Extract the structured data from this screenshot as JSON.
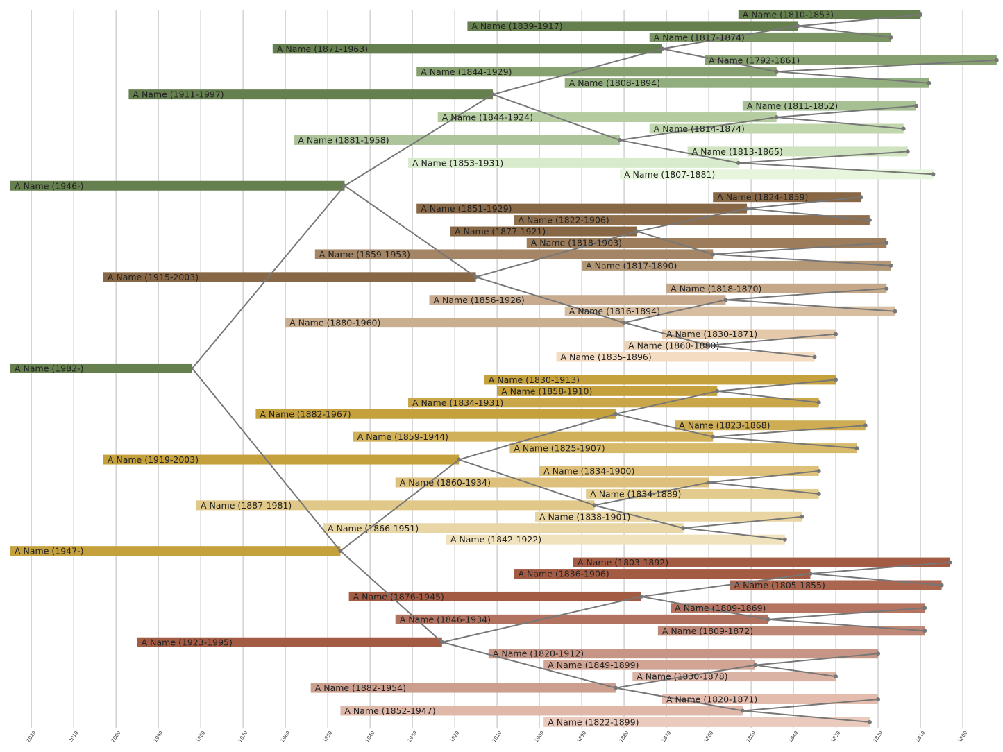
{
  "chart_data": {
    "type": "timeline",
    "xlim": [
      2027.4,
      1790.5
    ],
    "xticks": [
      2020,
      2010,
      2000,
      1990,
      1980,
      1970,
      1960,
      1950,
      1940,
      1930,
      1920,
      1910,
      1900,
      1890,
      1880,
      1870,
      1860,
      1850,
      1840,
      1830,
      1820,
      1810,
      1800
    ],
    "grid": true,
    "people": [
      {
        "label": "A Name (1810-1853)",
        "born": 1810,
        "died": 1853,
        "color": "#667f4f"
      },
      {
        "label": "A Name (1839-1917)",
        "born": 1839,
        "died": 1917,
        "color": "#667f4f"
      },
      {
        "label": "A Name (1817-1874)",
        "born": 1817,
        "died": 1874,
        "color": "#7a9463"
      },
      {
        "label": "A Name (1871-1963)",
        "born": 1871,
        "died": 1963,
        "color": "#667f4f"
      },
      {
        "label": "A Name (1792-1861)",
        "born": 1792,
        "died": 1861,
        "color": "#86a06f"
      },
      {
        "label": "A Name (1844-1929)",
        "born": 1844,
        "died": 1929,
        "color": "#86a06f"
      },
      {
        "label": "A Name (1808-1894)",
        "born": 1808,
        "died": 1894,
        "color": "#93ae7e"
      },
      {
        "label": "A Name (1911-1997)",
        "born": 1911,
        "died": 1997,
        "color": "#667f4f"
      },
      {
        "label": "A Name (1811-1852)",
        "born": 1811,
        "died": 1852,
        "color": "#a6c093"
      },
      {
        "label": "A Name (1844-1924)",
        "born": 1844,
        "died": 1924,
        "color": "#b4cca0"
      },
      {
        "label": "A Name (1814-1874)",
        "born": 1814,
        "died": 1874,
        "color": "#c0d6ad"
      },
      {
        "label": "A Name (1881-1958)",
        "born": 1881,
        "died": 1958,
        "color": "#adc49a"
      },
      {
        "label": "A Name (1813-1865)",
        "born": 1813,
        "died": 1865,
        "color": "#d0e3c0"
      },
      {
        "label": "A Name (1853-1931)",
        "born": 1853,
        "died": 1931,
        "color": "#d8ebcc"
      },
      {
        "label": "A Name (1807-1881)",
        "born": 1807,
        "died": 1881,
        "color": "#e6f5dc"
      },
      {
        "label": "A Name (1946-)",
        "born": 1946,
        "died": null,
        "color": "#667f4f"
      },
      {
        "label": "A Name (1824-1859)",
        "born": 1824,
        "died": 1859,
        "color": "#876745"
      },
      {
        "label": "A Name (1851-1929)",
        "born": 1851,
        "died": 1929,
        "color": "#876745"
      },
      {
        "label": "A Name (1822-1906)",
        "born": 1822,
        "died": 1906,
        "color": "#8f6e4d"
      },
      {
        "label": "A Name (1877-1921)",
        "born": 1877,
        "died": 1921,
        "color": "#876745"
      },
      {
        "label": "A Name (1818-1903)",
        "born": 1818,
        "died": 1903,
        "color": "#9c7c5a"
      },
      {
        "label": "A Name (1859-1953)",
        "born": 1859,
        "died": 1953,
        "color": "#a48565"
      },
      {
        "label": "A Name (1817-1890)",
        "born": 1817,
        "died": 1890,
        "color": "#b39878"
      },
      {
        "label": "A Name (1915-2003)",
        "born": 1915,
        "died": 2003,
        "color": "#876745"
      },
      {
        "label": "A Name (1818-1870)",
        "born": 1818,
        "died": 1870,
        "color": "#c5a88a"
      },
      {
        "label": "A Name (1856-1926)",
        "born": 1856,
        "died": 1926,
        "color": "#c8ab8e"
      },
      {
        "label": "A Name (1816-1894)",
        "born": 1816,
        "died": 1894,
        "color": "#d6bda0"
      },
      {
        "label": "A Name (1880-1960)",
        "born": 1880,
        "died": 1960,
        "color": "#c9ae90"
      },
      {
        "label": "A Name (1830-1871)",
        "born": 1830,
        "died": 1871,
        "color": "#e3c9aa"
      },
      {
        "label": "A Name (1860-1880)",
        "born": 1860,
        "died": 1880,
        "color": "#ecd4b8"
      },
      {
        "label": "A Name (1835-1896)",
        "born": 1835,
        "died": 1896,
        "color": "#f4dcc2"
      },
      {
        "label": "A Name (1982-)",
        "born": 1982,
        "died": null,
        "color": "#667f4f"
      },
      {
        "label": "A Name (1830-1913)",
        "born": 1830,
        "died": 1913,
        "color": "#c5a13e"
      },
      {
        "label": "A Name (1858-1910)",
        "born": 1858,
        "died": 1910,
        "color": "#c5a13e"
      },
      {
        "label": "A Name (1834-1931)",
        "born": 1834,
        "died": 1931,
        "color": "#c9a649"
      },
      {
        "label": "A Name (1882-1967)",
        "born": 1882,
        "died": 1967,
        "color": "#c5a13e"
      },
      {
        "label": "A Name (1823-1868)",
        "born": 1823,
        "died": 1868,
        "color": "#cfad55"
      },
      {
        "label": "A Name (1859-1944)",
        "born": 1859,
        "died": 1944,
        "color": "#d1b05a"
      },
      {
        "label": "A Name (1825-1907)",
        "born": 1825,
        "died": 1907,
        "color": "#d7b96a"
      },
      {
        "label": "A Name (1919-2003)",
        "born": 1919,
        "died": 2003,
        "color": "#c5a13e"
      },
      {
        "label": "A Name (1834-1900)",
        "born": 1834,
        "died": 1900,
        "color": "#dec07a"
      },
      {
        "label": "A Name (1860-1934)",
        "born": 1860,
        "died": 1934,
        "color": "#dcc07c"
      },
      {
        "label": "A Name (1834-1889)",
        "born": 1834,
        "died": 1889,
        "color": "#e3cb8e"
      },
      {
        "label": "A Name (1887-1981)",
        "born": 1887,
        "died": 1981,
        "color": "#e0c888"
      },
      {
        "label": "A Name (1838-1901)",
        "born": 1838,
        "died": 1901,
        "color": "#e9d5a2"
      },
      {
        "label": "A Name (1866-1951)",
        "born": 1866,
        "died": 1951,
        "color": "#e8d6a6"
      },
      {
        "label": "A Name (1842-1922)",
        "born": 1842,
        "died": 1922,
        "color": "#f0e2bc"
      },
      {
        "label": "A Name (1947-)",
        "born": 1947,
        "died": null,
        "color": "#c5a13e"
      },
      {
        "label": "A Name (1803-1892)",
        "born": 1803,
        "died": 1892,
        "color": "#a35c43"
      },
      {
        "label": "A Name (1836-1906)",
        "born": 1836,
        "died": 1906,
        "color": "#a35c43"
      },
      {
        "label": "A Name (1805-1855)",
        "born": 1805,
        "died": 1855,
        "color": "#ab6650"
      },
      {
        "label": "A Name (1876-1945)",
        "born": 1876,
        "died": 1945,
        "color": "#a35c43"
      },
      {
        "label": "A Name (1809-1869)",
        "born": 1809,
        "died": 1869,
        "color": "#b47461"
      },
      {
        "label": "A Name (1846-1934)",
        "born": 1846,
        "died": 1934,
        "color": "#b17360"
      },
      {
        "label": "A Name (1809-1872)",
        "born": 1809,
        "died": 1872,
        "color": "#bf8876"
      },
      {
        "label": "A Name (1923-1995)",
        "born": 1923,
        "died": 1995,
        "color": "#a35c43"
      },
      {
        "label": "A Name (1820-1912)",
        "born": 1820,
        "died": 1912,
        "color": "#c69585"
      },
      {
        "label": "A Name (1849-1899)",
        "born": 1849,
        "died": 1899,
        "color": "#d1a494"
      },
      {
        "label": "A Name (1830-1878)",
        "born": 1830,
        "died": 1878,
        "color": "#dbb3a5"
      },
      {
        "label": "A Name (1882-1954)",
        "born": 1882,
        "died": 1954,
        "color": "#cb9e8e"
      },
      {
        "label": "A Name (1820-1871)",
        "born": 1820,
        "died": 1871,
        "color": "#e3bcae"
      },
      {
        "label": "A Name (1852-1947)",
        "born": 1852,
        "died": 1947,
        "color": "#dfb8aa"
      },
      {
        "label": "A Name (1822-1899)",
        "born": 1822,
        "died": 1899,
        "color": "#ebcabe"
      }
    ]
  }
}
